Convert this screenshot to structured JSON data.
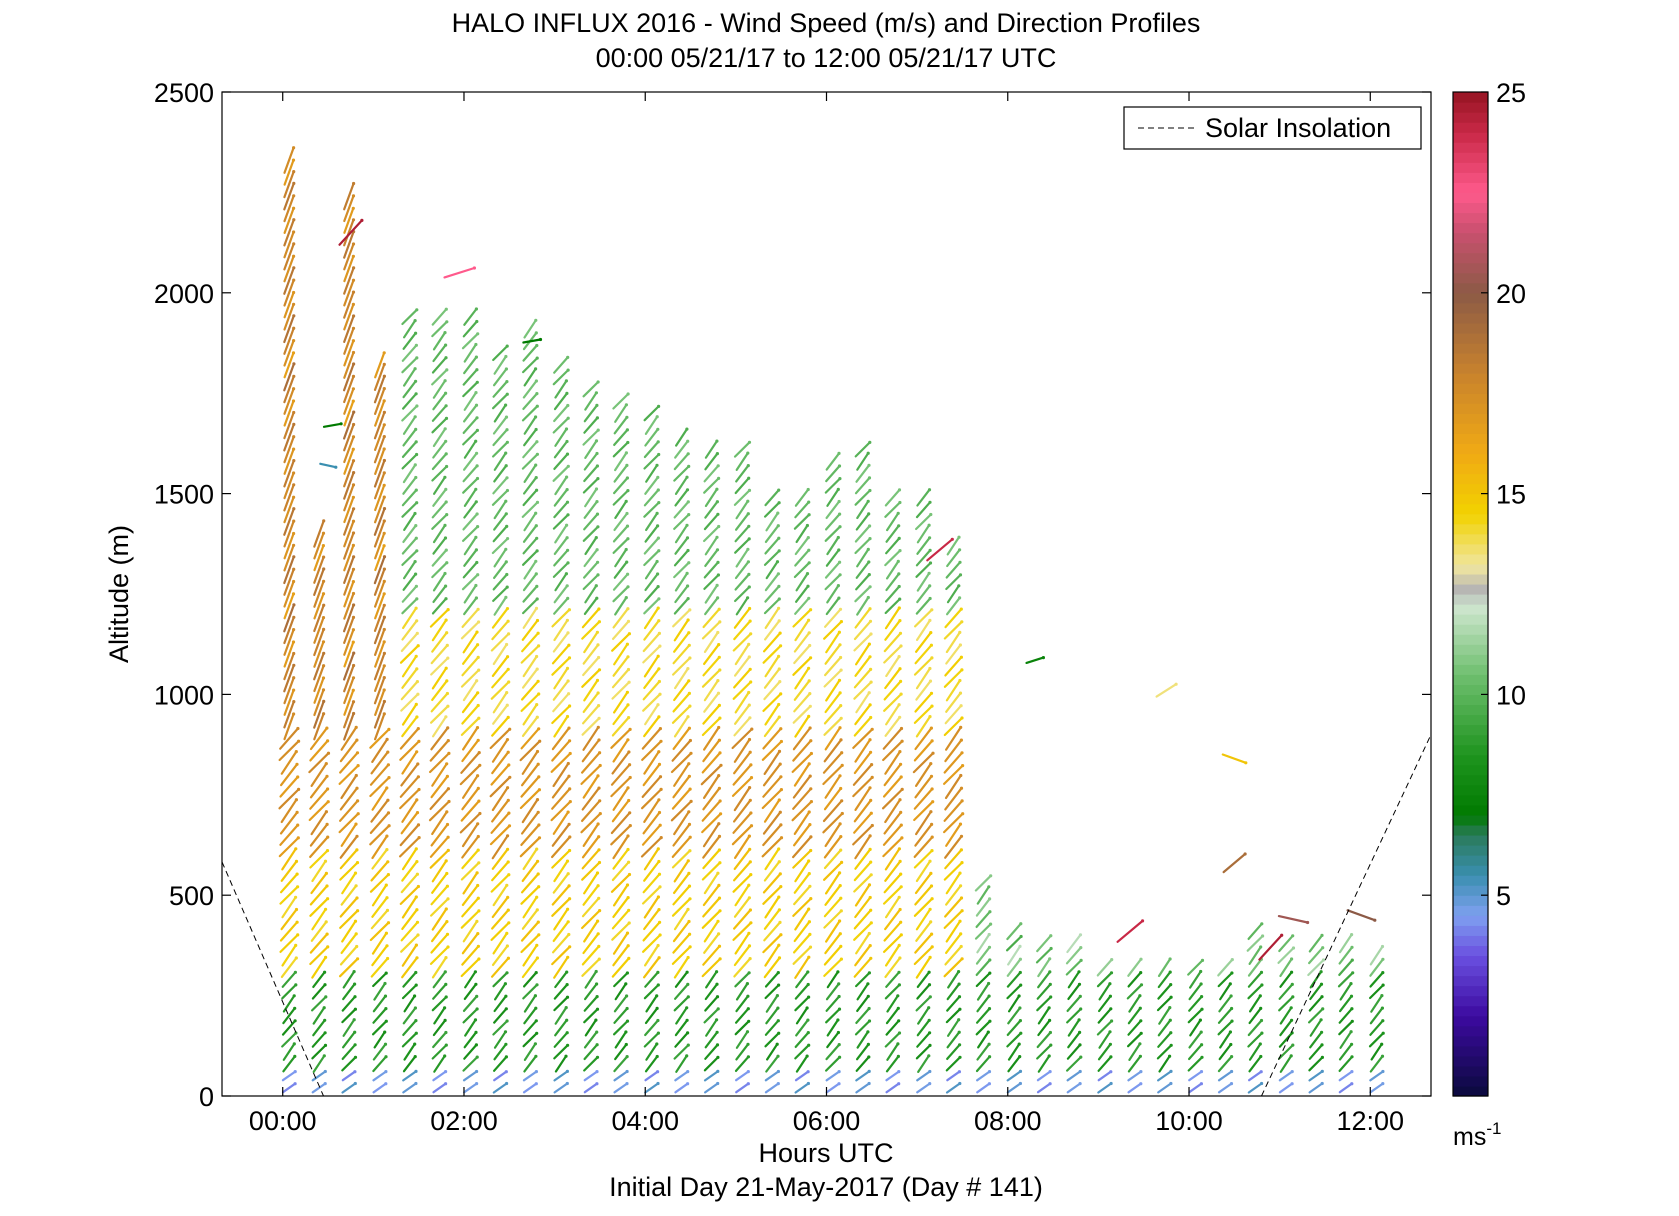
{
  "chart_data": {
    "type": "wind-barb-profile",
    "title_line1": "HALO INFLUX 2016 - Wind Speed (m/s) and Direction Profiles",
    "title_line2": "00:00 05/21/17 to 12:00 05/21/17  UTC",
    "xlabel": "Hours UTC",
    "xlabel2": "Initial Day 21-May-2017 (Day # 141)",
    "ylabel": "Altitude (m)",
    "xlim_hours": [
      -0.67,
      12.67
    ],
    "ylim": [
      0,
      2500
    ],
    "x_ticks": [
      {
        "hour": 0,
        "label": "00:00"
      },
      {
        "hour": 2,
        "label": "02:00"
      },
      {
        "hour": 4,
        "label": "04:00"
      },
      {
        "hour": 6,
        "label": "06:00"
      },
      {
        "hour": 8,
        "label": "08:00"
      },
      {
        "hour": 10,
        "label": "10:00"
      },
      {
        "hour": 12,
        "label": "12:00"
      }
    ],
    "y_ticks": [
      0,
      500,
      1000,
      1500,
      2000,
      2500
    ],
    "legend": {
      "label": "Solar Insolation",
      "position": "top-right"
    },
    "colorbar": {
      "range": [
        0,
        25
      ],
      "ticks": [
        5,
        10,
        15,
        20,
        25
      ],
      "unit_label": "ms",
      "unit_exponent": "-1",
      "stops": [
        {
          "v": 0,
          "c": "#0a0a3c"
        },
        {
          "v": 2,
          "c": "#3c0aa0"
        },
        {
          "v": 3.5,
          "c": "#6a50e0"
        },
        {
          "v": 4.5,
          "c": "#7fa0f0"
        },
        {
          "v": 5.5,
          "c": "#3a8fb0"
        },
        {
          "v": 6.5,
          "c": "#2a7a5a"
        },
        {
          "v": 7,
          "c": "#007a00"
        },
        {
          "v": 8.5,
          "c": "#1f941f"
        },
        {
          "v": 10.5,
          "c": "#6fbf6f"
        },
        {
          "v": 12.2,
          "c": "#cfe6cf"
        },
        {
          "v": 12.6,
          "c": "#b4b4b4"
        },
        {
          "v": 13.2,
          "c": "#f0e6a0"
        },
        {
          "v": 14.5,
          "c": "#f2d200"
        },
        {
          "v": 16,
          "c": "#f0aa14"
        },
        {
          "v": 18,
          "c": "#c8822d"
        },
        {
          "v": 20,
          "c": "#8c5a46"
        },
        {
          "v": 21.5,
          "c": "#c8506e"
        },
        {
          "v": 22.5,
          "c": "#ff5a8c"
        },
        {
          "v": 24,
          "c": "#c82846"
        },
        {
          "v": 25,
          "c": "#961423"
        }
      ]
    },
    "solar_insolation": [
      {
        "hour": -0.67,
        "alt": 583
      },
      {
        "hour": 0.45,
        "alt": 0
      },
      {
        "hour": 10.8,
        "alt": 0
      },
      {
        "hour": 12.67,
        "alt": 900
      }
    ],
    "profile_times_hours": [
      0.07,
      0.4,
      0.73,
      1.07,
      1.4,
      1.73,
      2.07,
      2.4,
      2.73,
      3.07,
      3.4,
      3.73,
      4.07,
      4.4,
      4.73,
      5.07,
      5.4,
      5.73,
      6.07,
      6.4,
      6.73,
      7.07,
      7.4,
      7.73,
      8.07,
      8.4,
      8.73,
      9.07,
      9.4,
      9.73,
      10.07,
      10.4,
      10.73,
      11.07,
      11.4,
      11.73,
      12.07
    ],
    "profile_top_altitudes_m": [
      2330,
      1420,
      2250,
      1830,
      1960,
      1960,
      1960,
      1870,
      1920,
      1830,
      1780,
      1750,
      1700,
      1660,
      1630,
      1630,
      1500,
      1500,
      1590,
      1630,
      1500,
      1500,
      1380,
      550,
      420,
      380,
      380,
      340,
      340,
      340,
      340,
      340,
      420,
      380,
      380,
      380,
      370
    ],
    "range_gate_spacing_m": 30,
    "speed_bands_by_altitude": [
      {
        "from_m": 0,
        "to_m": 60,
        "speed_ms": 4.5,
        "direction": "from southwest, weak"
      },
      {
        "from_m": 60,
        "to_m": 300,
        "speed_ms": 8.5,
        "direction": "from south-southwest"
      },
      {
        "from_m": 300,
        "to_m": 600,
        "speed_ms": 14.5,
        "direction": "from southwest"
      },
      {
        "from_m": 600,
        "to_m": 900,
        "speed_ms": 17,
        "direction": "from southwest"
      },
      {
        "from_m": 900,
        "to_m": 1200,
        "speed_ms": 14,
        "direction": "from southwest"
      },
      {
        "from_m": 1200,
        "to_m": 2500,
        "speed_ms": 10,
        "direction": "from southwest"
      }
    ],
    "isolated_barbs": [
      {
        "hour": 0.75,
        "alt": 2150,
        "speed_ms": 24.5
      },
      {
        "hour": 1.95,
        "alt": 2050,
        "speed_ms": 22.5
      },
      {
        "hour": 0.55,
        "alt": 1670,
        "speed_ms": 7
      },
      {
        "hour": 0.5,
        "alt": 1570,
        "speed_ms": 5.5
      },
      {
        "hour": 2.75,
        "alt": 1880,
        "speed_ms": 7
      },
      {
        "hour": 7.25,
        "alt": 1360,
        "speed_ms": 24
      },
      {
        "hour": 8.3,
        "alt": 1085,
        "speed_ms": 7.5
      },
      {
        "hour": 9.75,
        "alt": 1010,
        "speed_ms": 13.5
      },
      {
        "hour": 10.5,
        "alt": 840,
        "speed_ms": 15
      },
      {
        "hour": 10.5,
        "alt": 580,
        "speed_ms": 19
      },
      {
        "hour": 9.35,
        "alt": 410,
        "speed_ms": 24
      },
      {
        "hour": 10.9,
        "alt": 370,
        "speed_ms": 24.5
      },
      {
        "hour": 11.15,
        "alt": 440,
        "speed_ms": 20.5
      },
      {
        "hour": 11.9,
        "alt": 450,
        "speed_ms": 20
      }
    ]
  }
}
